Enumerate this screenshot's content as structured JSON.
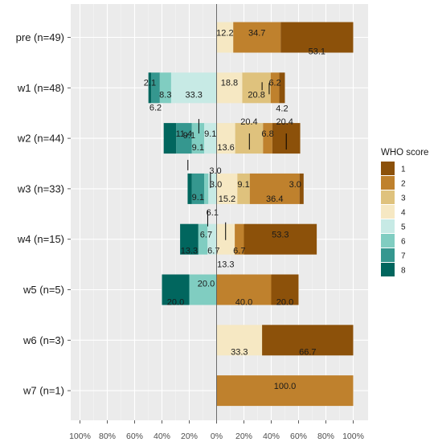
{
  "chart_data": {
    "type": "bar",
    "orientation": "horizontal",
    "stacking": "diverging",
    "categories": [
      "pre (n=49)",
      "w1 (n=48)",
      "w2 (n=44)",
      "w3 (n=33)",
      "w4 (n=15)",
      "w5 (n=5)",
      "w6 (n=3)",
      "w7 (n=1)"
    ],
    "x_ticks": [
      "100%",
      "80%",
      "60%",
      "40%",
      "20%",
      "0%",
      "20%",
      "40%",
      "60%",
      "80%",
      "100%"
    ],
    "xlim": [
      -100,
      100
    ],
    "grid": true,
    "legend": {
      "title": "WHO score",
      "position": "right",
      "items": [
        {
          "label": "1",
          "color": "#8c510a"
        },
        {
          "label": "2",
          "color": "#bf812d"
        },
        {
          "label": "3",
          "color": "#dfc27d"
        },
        {
          "label": "4",
          "color": "#f6e8c3"
        },
        {
          "label": "5",
          "color": "#c7eae5"
        },
        {
          "label": "6",
          "color": "#80cdc1"
        },
        {
          "label": "7",
          "color": "#35978f"
        },
        {
          "label": "8",
          "color": "#01665e"
        }
      ]
    },
    "series": [
      {
        "name": "1",
        "values": [
          53.1,
          4.2,
          20.4,
          3.0,
          53.3,
          20.0,
          66.7,
          0
        ]
      },
      {
        "name": "2",
        "values": [
          34.7,
          6.2,
          6.8,
          36.4,
          6.7,
          40.0,
          0,
          100.0
        ]
      },
      {
        "name": "3",
        "values": [
          0,
          20.8,
          20.4,
          9.1,
          0,
          0,
          0,
          0
        ]
      },
      {
        "name": "4",
        "values": [
          12.2,
          18.8,
          13.6,
          15.2,
          13.3,
          0,
          33.3,
          0
        ]
      },
      {
        "name": "5",
        "values": [
          0,
          33.3,
          9.1,
          6.1,
          6.7,
          0,
          0,
          0
        ]
      },
      {
        "name": "6",
        "values": [
          0,
          8.3,
          9.1,
          3.0,
          6.7,
          20.0,
          0,
          0
        ]
      },
      {
        "name": "7",
        "values": [
          0,
          6.2,
          11.4,
          9.1,
          0,
          0,
          0,
          0
        ]
      },
      {
        "name": "8",
        "values": [
          0,
          2.1,
          9.1,
          3.0,
          13.3,
          20.0,
          0,
          0
        ]
      }
    ]
  }
}
